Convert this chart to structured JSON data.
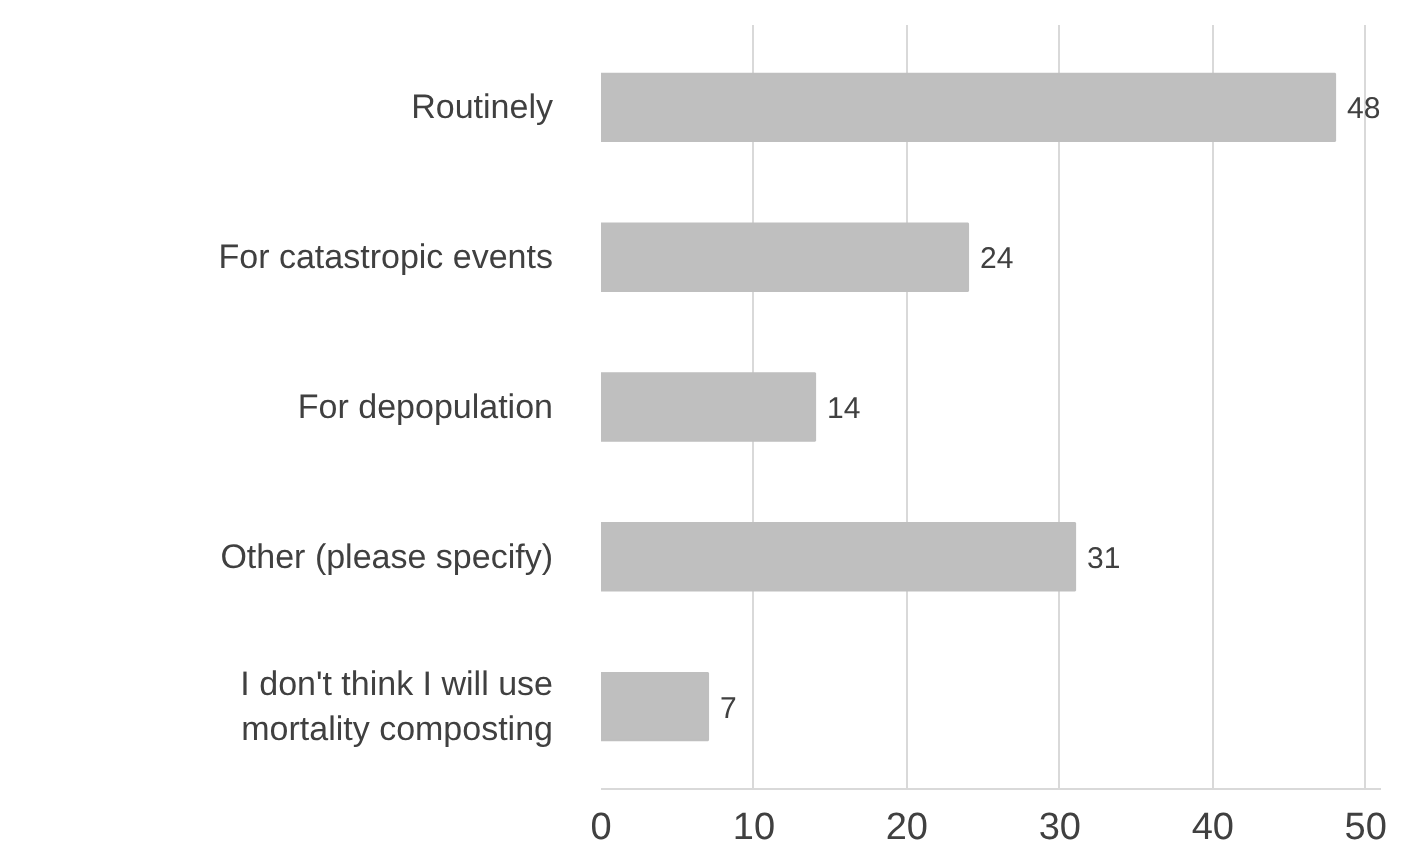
{
  "chart_data": {
    "type": "bar",
    "orientation": "horizontal",
    "categories": [
      "Routinely",
      "For catastropic events",
      "For depopulation",
      "Other (please specify)",
      "I don't think I will use mortality composting"
    ],
    "values": [
      48,
      24,
      14,
      31,
      7
    ],
    "color": "#bfbfbf",
    "xlim": [
      0,
      51
    ],
    "xticks": [
      0,
      10,
      20,
      30,
      40,
      50
    ],
    "grid": "x",
    "data_labels": true
  }
}
